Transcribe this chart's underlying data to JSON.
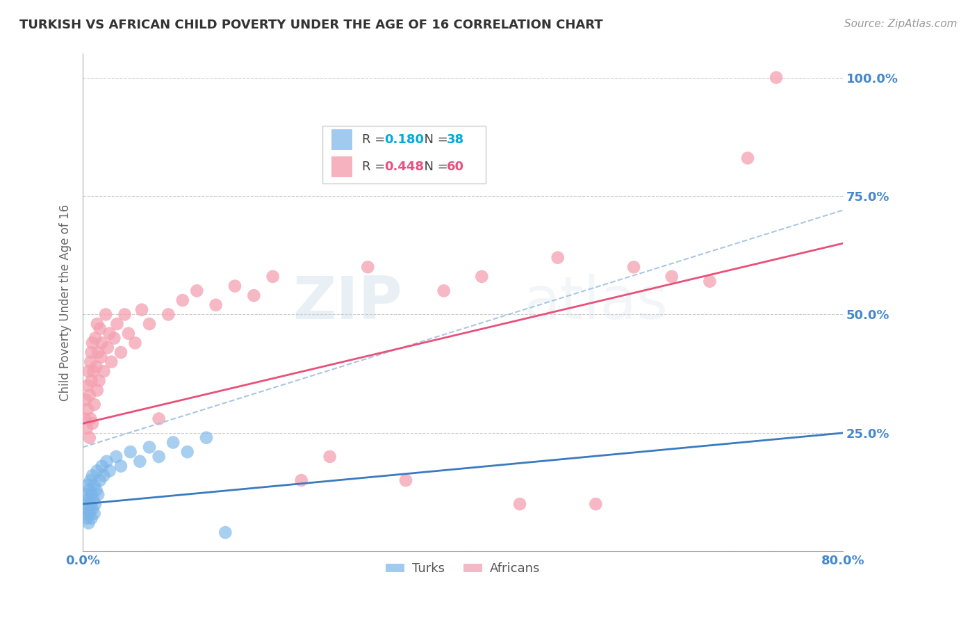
{
  "title": "TURKISH VS AFRICAN CHILD POVERTY UNDER THE AGE OF 16 CORRELATION CHART",
  "source": "Source: ZipAtlas.com",
  "ylabel": "Child Poverty Under the Age of 16",
  "xlim": [
    0.0,
    0.8
  ],
  "ylim": [
    0.0,
    1.05
  ],
  "yticks": [
    0.0,
    0.25,
    0.5,
    0.75,
    1.0
  ],
  "ytick_labels": [
    "",
    "25.0%",
    "50.0%",
    "75.0%",
    "100.0%"
  ],
  "xticks": [
    0.0,
    0.2,
    0.4,
    0.6,
    0.8
  ],
  "xtick_labels": [
    "0.0%",
    "",
    "",
    "",
    "80.0%"
  ],
  "turks_R": 0.18,
  "turks_N": 38,
  "africans_R": 0.448,
  "africans_N": 60,
  "turks_color": "#7ab4e8",
  "africans_color": "#f4a0b0",
  "turk_line_color": "#3a7abf",
  "african_line_color": "#e8507a",
  "dashed_line_color": "#a0c0e0",
  "bg_color": "#ffffff",
  "grid_color": "#cccccc",
  "axis_label_color": "#4488cc",
  "title_color": "#333333",
  "watermark_zip": "ZIP",
  "watermark_atlas": "atlas",
  "turks_x": [
    0.002,
    0.003,
    0.004,
    0.004,
    0.005,
    0.005,
    0.006,
    0.006,
    0.007,
    0.007,
    0.008,
    0.008,
    0.009,
    0.009,
    0.01,
    0.01,
    0.011,
    0.012,
    0.012,
    0.013,
    0.014,
    0.015,
    0.016,
    0.018,
    0.02,
    0.022,
    0.025,
    0.028,
    0.035,
    0.04,
    0.05,
    0.06,
    0.07,
    0.08,
    0.095,
    0.11,
    0.13,
    0.15
  ],
  "turks_y": [
    0.08,
    0.1,
    0.07,
    0.12,
    0.09,
    0.14,
    0.06,
    0.11,
    0.08,
    0.13,
    0.1,
    0.15,
    0.07,
    0.12,
    0.09,
    0.16,
    0.11,
    0.08,
    0.14,
    0.1,
    0.13,
    0.17,
    0.12,
    0.15,
    0.18,
    0.16,
    0.19,
    0.17,
    0.2,
    0.18,
    0.21,
    0.19,
    0.22,
    0.2,
    0.23,
    0.21,
    0.24,
    0.04
  ],
  "africans_x": [
    0.002,
    0.003,
    0.004,
    0.005,
    0.005,
    0.006,
    0.007,
    0.007,
    0.008,
    0.008,
    0.009,
    0.009,
    0.01,
    0.01,
    0.011,
    0.012,
    0.013,
    0.014,
    0.015,
    0.015,
    0.016,
    0.017,
    0.018,
    0.019,
    0.02,
    0.022,
    0.024,
    0.026,
    0.028,
    0.03,
    0.033,
    0.036,
    0.04,
    0.044,
    0.048,
    0.055,
    0.062,
    0.07,
    0.08,
    0.09,
    0.105,
    0.12,
    0.14,
    0.16,
    0.18,
    0.2,
    0.23,
    0.26,
    0.3,
    0.34,
    0.38,
    0.42,
    0.46,
    0.5,
    0.54,
    0.58,
    0.62,
    0.66,
    0.7,
    0.73
  ],
  "africans_y": [
    0.28,
    0.32,
    0.26,
    0.35,
    0.3,
    0.38,
    0.24,
    0.33,
    0.28,
    0.4,
    0.36,
    0.42,
    0.27,
    0.44,
    0.38,
    0.31,
    0.45,
    0.39,
    0.34,
    0.48,
    0.42,
    0.36,
    0.47,
    0.41,
    0.44,
    0.38,
    0.5,
    0.43,
    0.46,
    0.4,
    0.45,
    0.48,
    0.42,
    0.5,
    0.46,
    0.44,
    0.51,
    0.48,
    0.28,
    0.5,
    0.53,
    0.55,
    0.52,
    0.56,
    0.54,
    0.58,
    0.15,
    0.2,
    0.6,
    0.15,
    0.55,
    0.58,
    0.1,
    0.62,
    0.1,
    0.6,
    0.58,
    0.57,
    0.83,
    1.0
  ],
  "turks_line_x": [
    0.0,
    0.8
  ],
  "turks_line_y": [
    0.1,
    0.25
  ],
  "africans_line_x": [
    0.0,
    0.8
  ],
  "africans_line_y": [
    0.27,
    0.65
  ],
  "dashed_line_x": [
    0.0,
    0.8
  ],
  "dashed_line_y": [
    0.22,
    0.72
  ]
}
